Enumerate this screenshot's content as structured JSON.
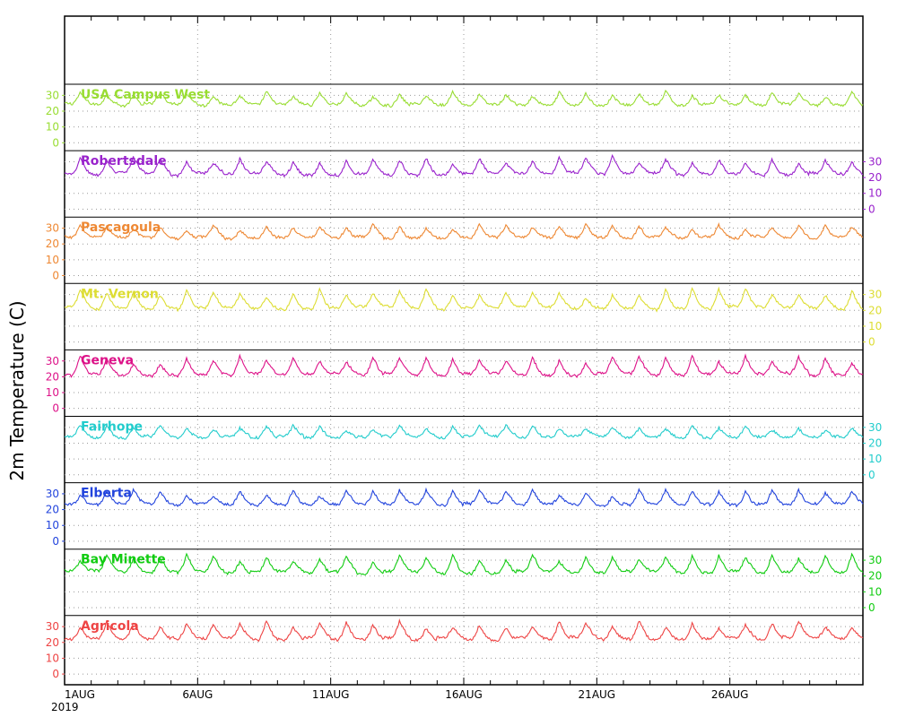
{
  "chart_data": {
    "type": "line",
    "ylabel": "2m Temperature (C)",
    "ylim": [
      -5,
      37
    ],
    "yticks": [
      0,
      10,
      20,
      30
    ],
    "grid": "dotted",
    "x_start": "2019-08-01",
    "x_end": "2019-08-31",
    "xtick_labels": [
      "1AUG",
      "6AUG",
      "11AUG",
      "16AUG",
      "21AUG",
      "26AUG"
    ],
    "xtick_label_days": [
      1,
      6,
      11,
      16,
      21,
      26
    ],
    "year_label": "2019",
    "series": [
      {
        "name": "USA Campus West",
        "color": "#99dd33",
        "axis": "left",
        "min": 23,
        "max": 33
      },
      {
        "name": "Robertsdale",
        "color": "#9922cc",
        "axis": "right",
        "min": 21,
        "max": 34
      },
      {
        "name": "Pascagoula",
        "color": "#ee8833",
        "axis": "left",
        "min": 23,
        "max": 33
      },
      {
        "name": "Mt. Vernon",
        "color": "#dddd33",
        "axis": "right",
        "min": 20,
        "max": 34
      },
      {
        "name": "Geneva",
        "color": "#dd1188",
        "axis": "left",
        "min": 20,
        "max": 34
      },
      {
        "name": "Fairhope",
        "color": "#22cccc",
        "axis": "right",
        "min": 23,
        "max": 32
      },
      {
        "name": "Elberta",
        "color": "#2244dd",
        "axis": "left",
        "min": 22,
        "max": 33
      },
      {
        "name": "Bay Minette",
        "color": "#11cc11",
        "axis": "right",
        "min": 21,
        "max": 34
      },
      {
        "name": "Agricola",
        "color": "#ee4444",
        "axis": "left",
        "min": 21,
        "max": 34
      }
    ]
  }
}
